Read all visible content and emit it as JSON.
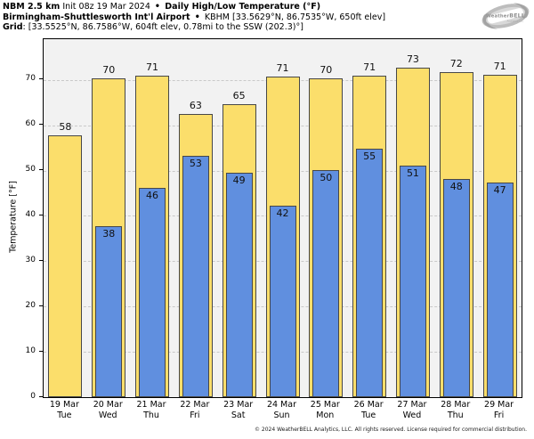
{
  "header": {
    "line1_model": "NBM 2.5 km",
    "line1_init": " Init 08z 19 Mar 2024 ",
    "line1_sep": "•",
    "line1_product": " Daily High/Low Temperature (°F)",
    "line2_station": "Birmingham-Shuttlesworth Int'l Airport ",
    "line2_sep": "•",
    "line2_meta": " KBHM [33.5629°N, 86.7535°W, 650ft elev]",
    "line3_label": "Grid",
    "line3_meta": ": [33.5525°N, 86.7586°W, 604ft elev, 0.78mi to the SSW (202.3)°]"
  },
  "logo": {
    "weather": "Weather",
    "bell": "BELL",
    "sub": "Analytics LLC"
  },
  "chart_data": {
    "type": "bar",
    "title": "Daily High/Low Temperature (°F)",
    "ylabel": "Temperature [°F]",
    "ylim": [
      0,
      79
    ],
    "yticks": [
      0,
      10,
      20,
      30,
      40,
      50,
      60,
      70
    ],
    "grid": "horizontal dashed",
    "legend": "none",
    "categories": [
      {
        "date": "19 Mar",
        "day": "Tue"
      },
      {
        "date": "20 Mar",
        "day": "Wed"
      },
      {
        "date": "21 Mar",
        "day": "Thu"
      },
      {
        "date": "22 Mar",
        "day": "Fri"
      },
      {
        "date": "23 Mar",
        "day": "Sat"
      },
      {
        "date": "24 Mar",
        "day": "Sun"
      },
      {
        "date": "25 Mar",
        "day": "Mon"
      },
      {
        "date": "26 Mar",
        "day": "Tue"
      },
      {
        "date": "27 Mar",
        "day": "Wed"
      },
      {
        "date": "28 Mar",
        "day": "Thu"
      },
      {
        "date": "29 Mar",
        "day": "Fri"
      }
    ],
    "series": [
      {
        "name": "Daily High",
        "labels": [
          58,
          70,
          71,
          63,
          65,
          71,
          70,
          71,
          73,
          72,
          71
        ],
        "draw_values": [
          57.7,
          70.4,
          71.0,
          62.5,
          64.6,
          70.8,
          70.4,
          70.9,
          72.7,
          71.7,
          71.2
        ]
      },
      {
        "name": "Daily Low",
        "labels": [
          null,
          38,
          46,
          53,
          49,
          42,
          50,
          55,
          51,
          48,
          47
        ],
        "draw_values": [
          null,
          37.7,
          46.2,
          53.2,
          49.5,
          42.2,
          50.2,
          54.8,
          51.0,
          48.2,
          47.3
        ]
      }
    ]
  },
  "colors": {
    "high_bar": "#fbde6b",
    "low_bar": "#608fdf",
    "bar_border": "#474747",
    "plot_bg": "#f2f2f2",
    "grid": "#c9c9c9",
    "frame": "#000000"
  },
  "footer": {
    "copyright": "© 2024 WeatherBELL Analytics, LLC. All rights reserved. License required for commercial distribution."
  }
}
